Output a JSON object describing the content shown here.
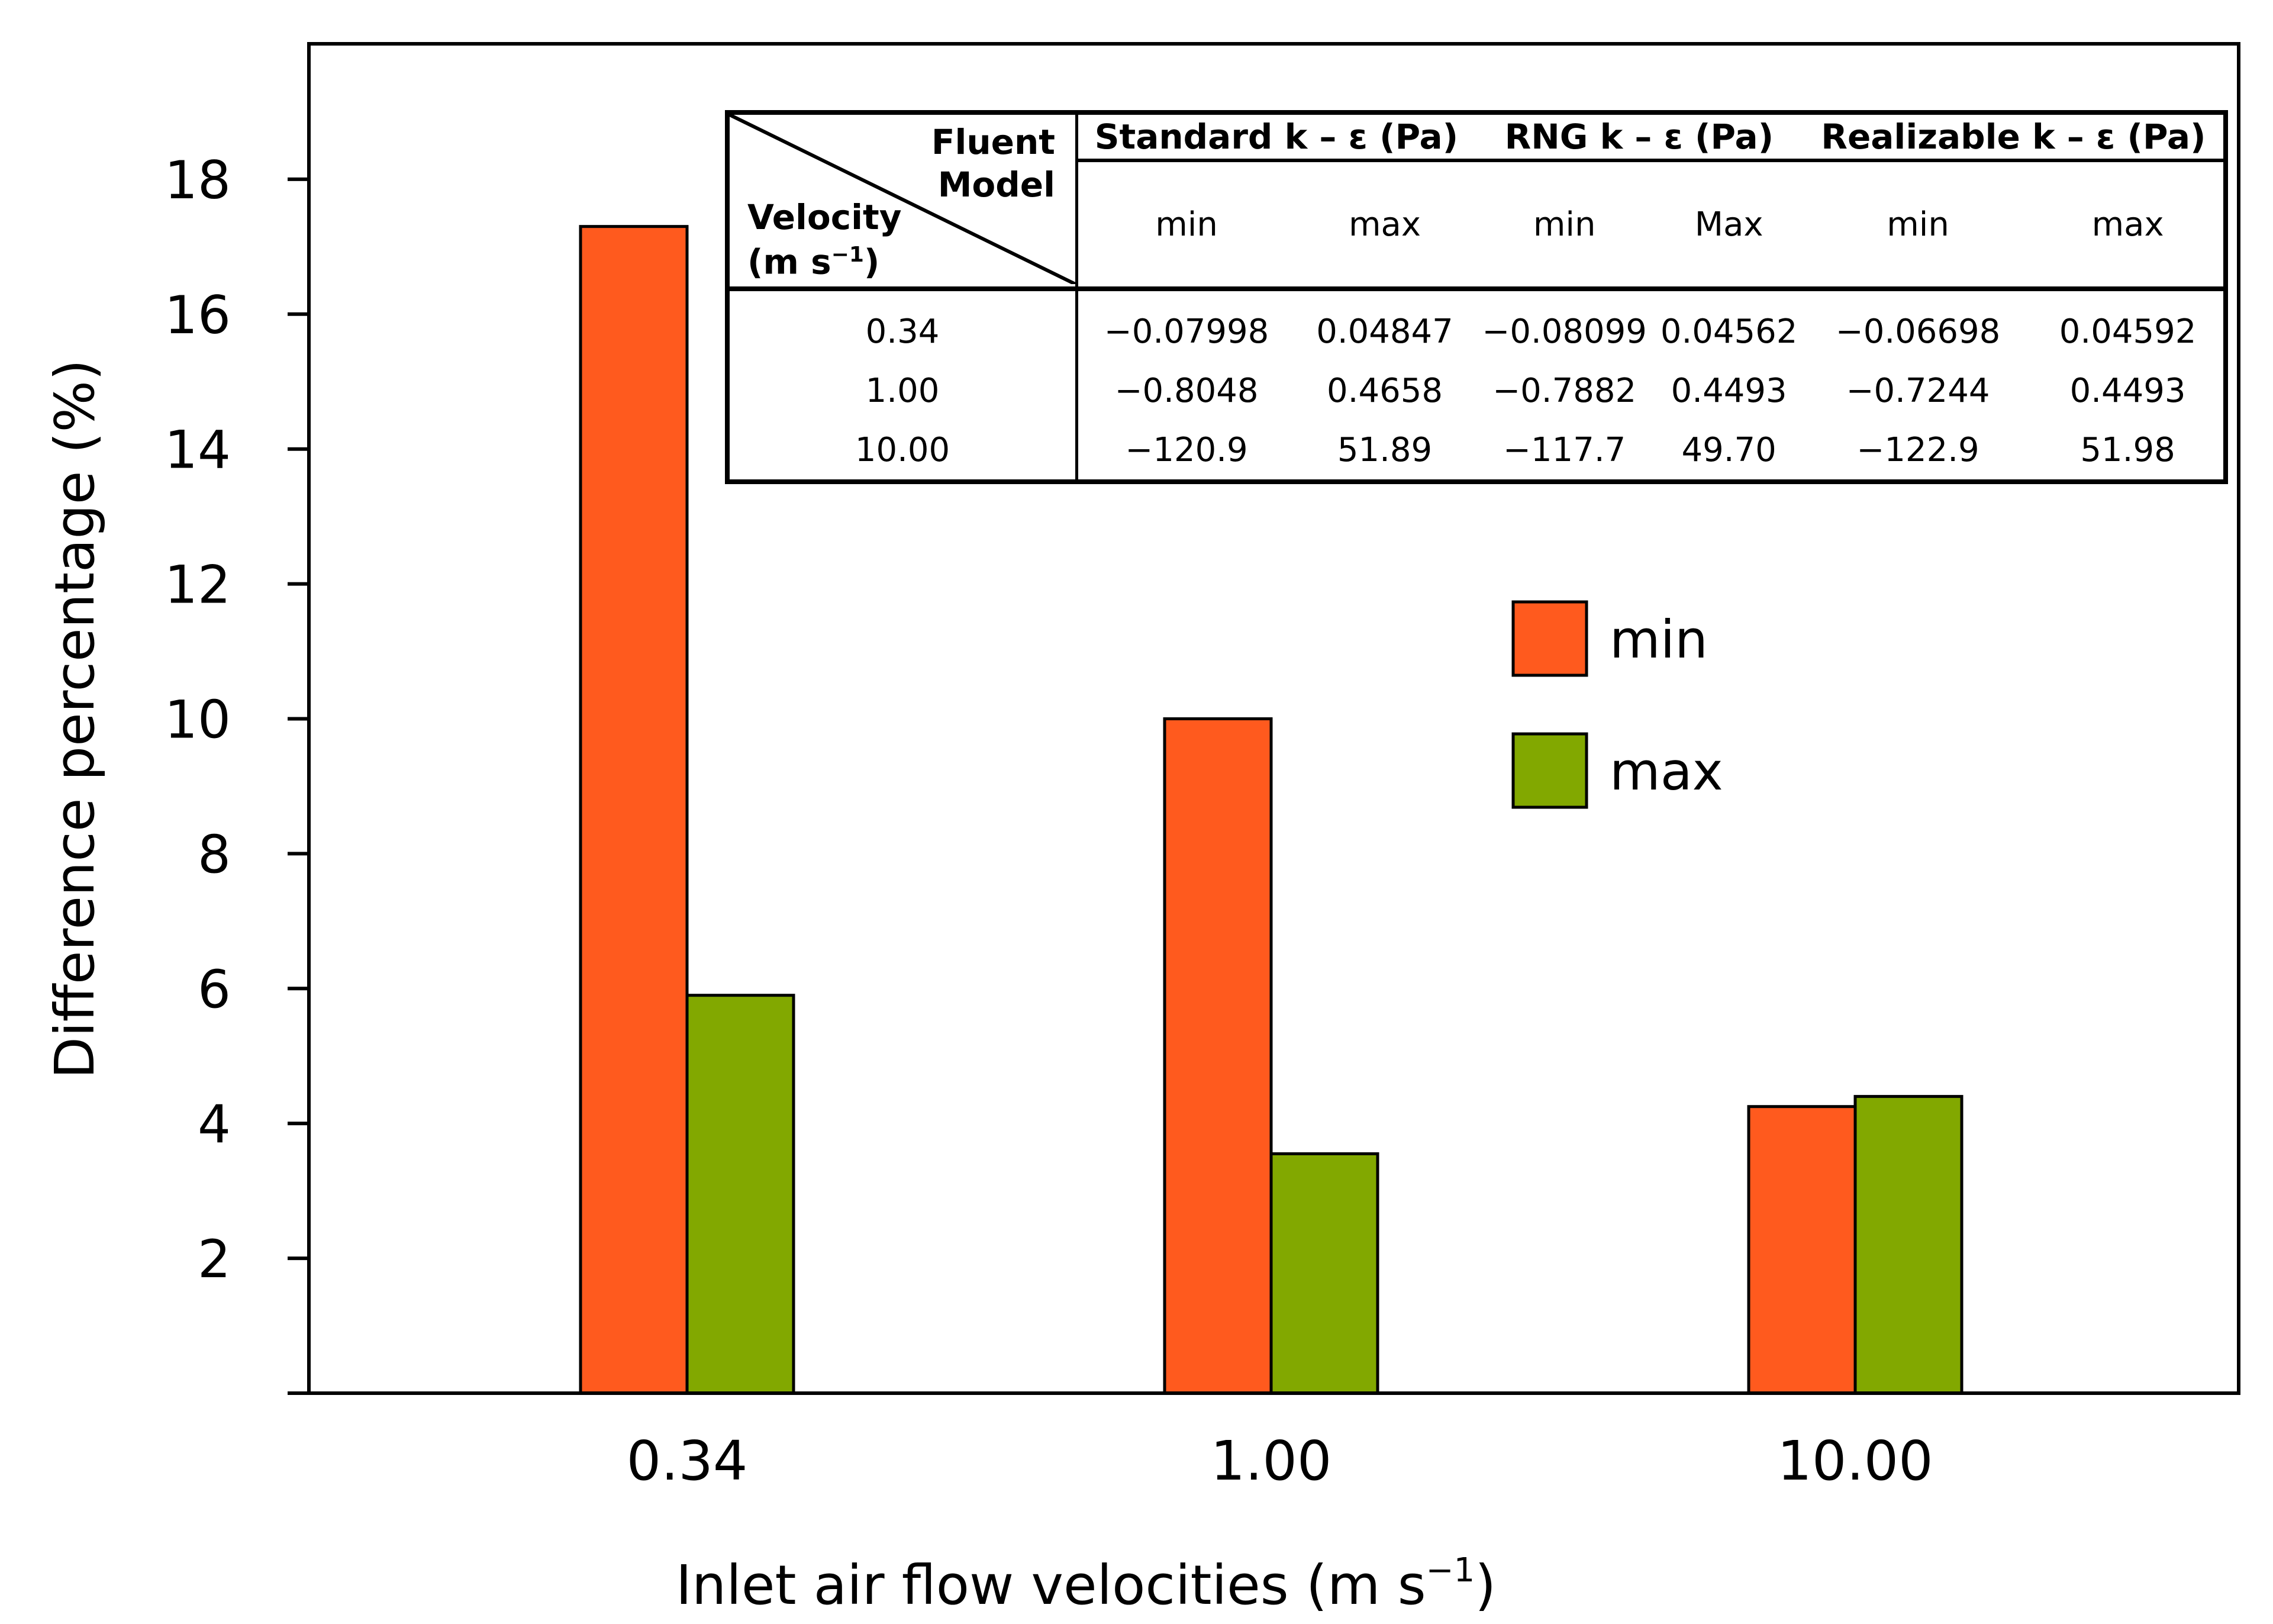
{
  "chart_data": {
    "type": "bar",
    "title": "",
    "xlabel": "Inlet air flow velocities (m s",
    "xlabel_sup": "−1",
    "xlabel_close": ")",
    "ylabel": "Difference percentage  (%)",
    "ylim": [
      0,
      20
    ],
    "yticks": [
      2,
      4,
      6,
      8,
      10,
      12,
      14,
      16,
      18
    ],
    "categories": [
      "0.34",
      "1.00",
      "10.00"
    ],
    "series": [
      {
        "name": "min",
        "color": "#ff5a1e",
        "values": [
          17.3,
          10.0,
          4.25
        ]
      },
      {
        "name": "max",
        "color": "#82a800",
        "values": [
          5.9,
          3.55,
          4.4
        ]
      }
    ],
    "legend_position": "right-middle"
  },
  "inset_table": {
    "corner_top_line1": "Fluent",
    "corner_top_line2": "Model",
    "corner_bottom_line1": "Velocity",
    "corner_bottom_line2a": "(m s",
    "corner_bottom_sup": "−1",
    "corner_bottom_line2b": ")",
    "groups": [
      "Standard k – ε (Pa)",
      "RNG k – ε (Pa)",
      "Realizable k – ε (Pa)"
    ],
    "subheaders": [
      "min",
      "max",
      "min",
      "Max",
      "min",
      "max"
    ],
    "rows": [
      {
        "velocity": "0.34",
        "values": [
          "−0.07998",
          "0.04847",
          "−0.08099",
          "0.04562",
          "−0.06698",
          "0.04592"
        ]
      },
      {
        "velocity": "1.00",
        "values": [
          "−0.8048",
          "0.4658",
          "−0.7882",
          "0.4493",
          "−0.7244",
          "0.4493"
        ]
      },
      {
        "velocity": "10.00",
        "values": [
          "−120.9",
          "51.89",
          "−117.7",
          "49.70",
          "−122.9",
          "51.98"
        ]
      }
    ]
  }
}
